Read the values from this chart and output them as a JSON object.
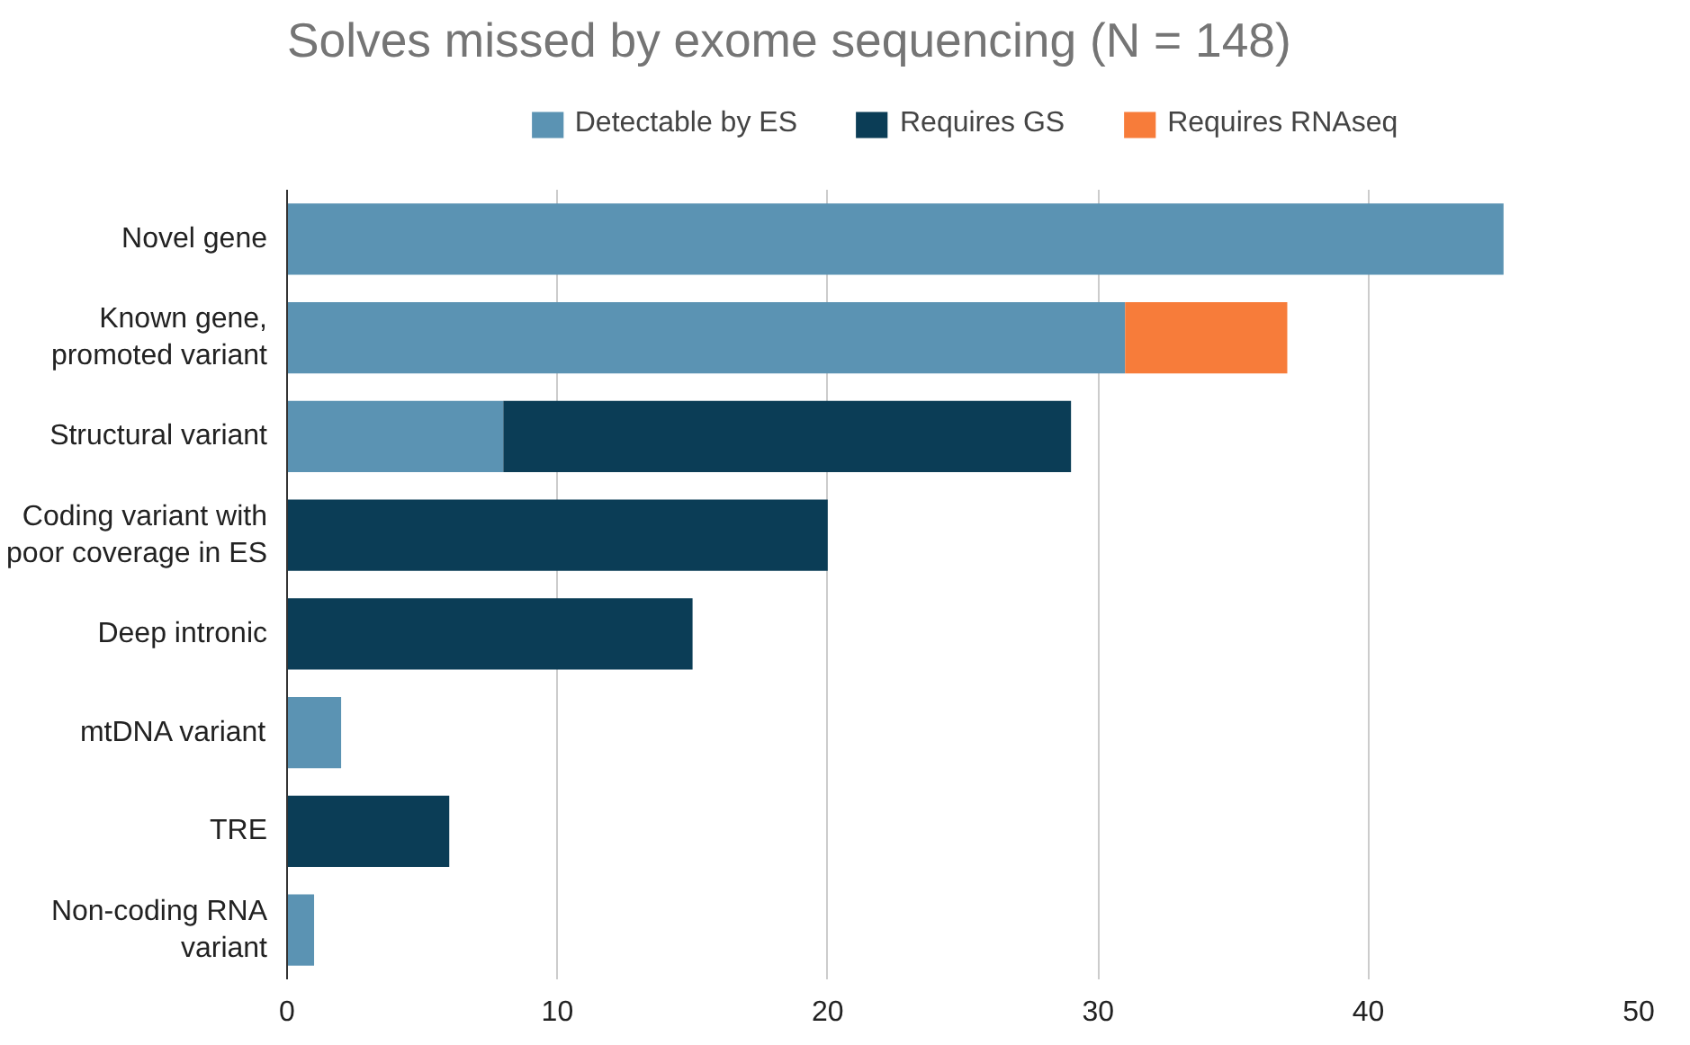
{
  "chart_data": {
    "type": "bar",
    "orientation": "horizontal",
    "stacked": true,
    "title": "Solves missed by exome sequencing (N = 148)",
    "categories": [
      "Novel gene",
      "Known gene,\npromoted variant",
      "Structural variant",
      "Coding variant with\npoor coverage in ES",
      "Deep intronic",
      "mtDNA variant",
      "TRE",
      "Non-coding RNA\nvariant"
    ],
    "series": [
      {
        "name": "Detectable by ES",
        "color": "#5b93b3",
        "values": [
          45,
          31,
          8,
          null,
          null,
          2,
          null,
          1
        ]
      },
      {
        "name": "Requires GS",
        "color": "#0b3d56",
        "values": [
          null,
          null,
          21,
          20,
          15,
          null,
          6,
          null
        ]
      },
      {
        "name": "Requires RNAseq",
        "color": "#f77c3a",
        "values": [
          null,
          6,
          null,
          null,
          null,
          null,
          null,
          null
        ]
      }
    ],
    "xlim": [
      0,
      50
    ],
    "xticks": [
      0,
      10,
      20,
      30,
      40,
      50
    ],
    "grid": "x",
    "legend": "top"
  }
}
